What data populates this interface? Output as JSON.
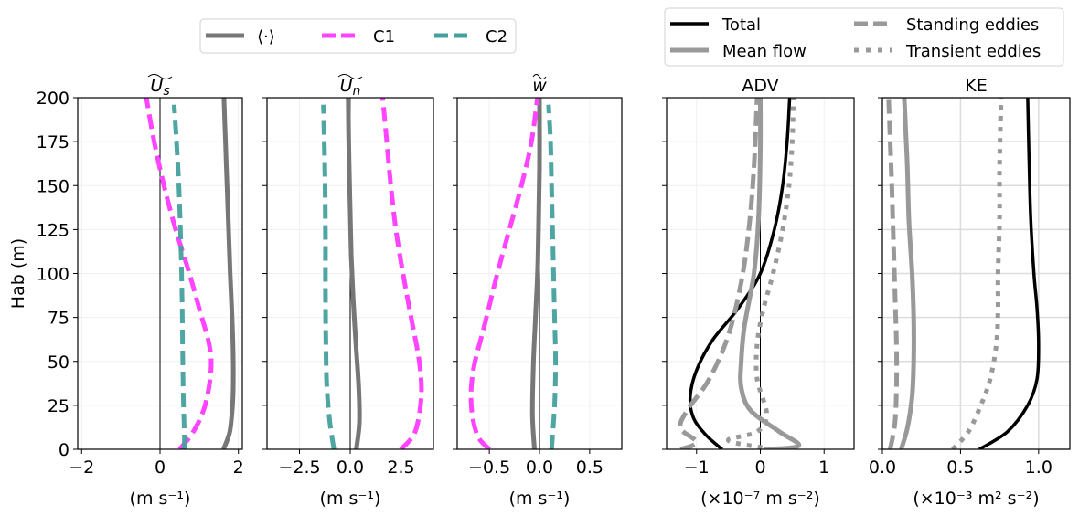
{
  "chart_data": [
    {
      "type": "line",
      "title": "U_s (tilde)",
      "title_main": "U",
      "title_sub": "s",
      "xlabel": "(m s⁻¹)",
      "ylabel": "Hab (m)",
      "xlim": [
        -2.1,
        2.1
      ],
      "ylim": [
        0,
        200
      ],
      "xticks": [
        -2,
        0,
        2
      ],
      "xtick_labels": [
        "−2",
        "0",
        "2"
      ],
      "yticks": [
        0,
        25,
        50,
        75,
        100,
        125,
        150,
        175,
        200
      ],
      "ytick_labels": [
        "0",
        "25",
        "50",
        "75",
        "100",
        "125",
        "150",
        "175",
        "200"
      ],
      "grid": true,
      "zero_line": true,
      "series": [
        {
          "name": "⟨·⟩",
          "style": "solid",
          "color": "#777777",
          "x": [
            1.62,
            1.78,
            1.85,
            1.87,
            1.86,
            1.83,
            1.79,
            1.75,
            1.71,
            1.67,
            1.63
          ],
          "y": [
            0,
            10,
            25,
            40,
            60,
            80,
            100,
            125,
            150,
            175,
            200
          ]
        },
        {
          "name": "C1",
          "style": "dashed",
          "color": "#ff44ff",
          "x": [
            0.5,
            0.85,
            1.15,
            1.3,
            1.25,
            1.0,
            0.75,
            0.4,
            0.1,
            -0.15,
            -0.35
          ],
          "y": [
            0,
            10,
            25,
            45,
            60,
            80,
            100,
            125,
            150,
            175,
            200
          ]
        },
        {
          "name": "C2",
          "style": "dashed",
          "color": "#44a09c",
          "x": [
            0.62,
            0.62,
            0.6,
            0.58,
            0.57,
            0.55,
            0.52,
            0.48,
            0.42,
            0.36
          ],
          "y": [
            0,
            10,
            25,
            50,
            75,
            100,
            125,
            150,
            175,
            196
          ]
        }
      ]
    },
    {
      "type": "line",
      "title": "U_n (tilde)",
      "title_main": "U",
      "title_sub": "n",
      "xlabel": "(m s⁻¹)",
      "xlim": [
        -4.1,
        4.1
      ],
      "ylim": [
        0,
        200
      ],
      "xticks": [
        -2.5,
        0.0,
        2.5
      ],
      "xtick_labels": [
        "−2.5",
        "0.0",
        "2.5"
      ],
      "grid": true,
      "zero_line": true,
      "series": [
        {
          "name": "⟨·⟩",
          "style": "solid",
          "color": "#777777",
          "x": [
            0.3,
            0.45,
            0.42,
            0.28,
            0.15,
            0.05,
            0.0,
            -0.05,
            -0.08,
            -0.1
          ],
          "y": [
            0,
            15,
            35,
            60,
            85,
            110,
            135,
            160,
            180,
            200
          ]
        },
        {
          "name": "C1",
          "style": "dashed",
          "color": "#ff44ff",
          "x": [
            2.5,
            3.2,
            3.5,
            3.4,
            3.0,
            2.6,
            2.25,
            2.0,
            1.8,
            1.6
          ],
          "y": [
            0,
            10,
            30,
            50,
            75,
            100,
            125,
            150,
            175,
            200
          ]
        },
        {
          "name": "C2",
          "style": "dashed",
          "color": "#44a09c",
          "x": [
            -0.8,
            -1.0,
            -1.15,
            -1.2,
            -1.22,
            -1.22,
            -1.24,
            -1.28,
            -1.32
          ],
          "y": [
            0,
            15,
            35,
            60,
            90,
            120,
            150,
            175,
            196
          ]
        }
      ]
    },
    {
      "type": "line",
      "title": "w (tilde)",
      "title_main": "w",
      "title_sub": "",
      "xlabel": "(m s⁻¹)",
      "xlim": [
        -0.82,
        0.82
      ],
      "ylim": [
        0,
        200
      ],
      "xticks": [
        -0.5,
        0.0,
        0.5
      ],
      "xtick_labels": [
        "−0.5",
        "0.0",
        "0.5"
      ],
      "grid": true,
      "zero_line": true,
      "series": [
        {
          "name": "⟨·⟩",
          "style": "solid",
          "color": "#777777",
          "x": [
            -0.05,
            -0.07,
            -0.06,
            -0.04,
            -0.02,
            -0.01,
            0.0,
            0.0
          ],
          "y": [
            0,
            20,
            50,
            75,
            100,
            125,
            160,
            200
          ]
        },
        {
          "name": "C1",
          "style": "dashed",
          "color": "#ff44ff",
          "x": [
            -0.5,
            -0.62,
            -0.68,
            -0.66,
            -0.55,
            -0.42,
            -0.3,
            -0.18,
            -0.08,
            -0.02
          ],
          "y": [
            0,
            8,
            25,
            45,
            70,
            100,
            125,
            150,
            175,
            200
          ]
        },
        {
          "name": "C2",
          "style": "dashed",
          "color": "#44a09c",
          "x": [
            0.12,
            0.15,
            0.16,
            0.15,
            0.14,
            0.13,
            0.12,
            0.11,
            0.09
          ],
          "y": [
            0,
            25,
            50,
            75,
            100,
            125,
            150,
            175,
            196
          ]
        }
      ]
    },
    {
      "type": "line",
      "title": "ADV",
      "xlabel": "(×10⁻⁷ m s⁻²)",
      "xlim": [
        -1.47,
        1.47
      ],
      "ylim": [
        0,
        200
      ],
      "xticks": [
        -1,
        0,
        1
      ],
      "xtick_labels": [
        "−1",
        "0",
        "1"
      ],
      "grid": true,
      "zero_line": true,
      "series": [
        {
          "name": "Total",
          "style": "solid",
          "color": "#000000",
          "x": [
            -0.6,
            -0.85,
            -1.05,
            -1.1,
            -1.0,
            -0.75,
            -0.35,
            0.0,
            0.22,
            0.35,
            0.42,
            0.46
          ],
          "y": [
            0,
            8,
            18,
            30,
            45,
            62,
            80,
            100,
            125,
            150,
            175,
            200
          ]
        },
        {
          "name": "Mean flow",
          "style": "solid",
          "color": "#999999",
          "x": [
            0.05,
            0.6,
            0.3,
            -0.15,
            -0.3,
            -0.3,
            -0.25,
            -0.1,
            -0.03,
            0.0,
            0.0
          ],
          "y": [
            0,
            2,
            10,
            22,
            35,
            50,
            70,
            100,
            130,
            170,
            200
          ]
        },
        {
          "name": "Standing eddies",
          "style": "dashed",
          "color": "#999999",
          "x": [
            -1.25,
            -1.0,
            -1.25,
            -1.15,
            -0.8,
            -0.5,
            -0.3,
            -0.18,
            -0.1,
            -0.05
          ],
          "y": [
            0,
            4,
            12,
            22,
            40,
            65,
            95,
            125,
            160,
            200
          ]
        },
        {
          "name": "Transient eddies",
          "style": "dotted",
          "color": "#999999",
          "x": [
            0.2,
            -0.5,
            -0.05,
            0.1,
            -0.05,
            -0.05,
            0.05,
            0.2,
            0.35,
            0.45,
            0.5,
            0.52
          ],
          "y": [
            0,
            5,
            10,
            20,
            40,
            60,
            80,
            100,
            125,
            150,
            175,
            200
          ]
        }
      ]
    },
    {
      "type": "line",
      "title": "KE",
      "xlabel": "(×10⁻³ m² s⁻²)",
      "xlim": [
        0,
        1.2
      ],
      "ylim": [
        0,
        200
      ],
      "xticks": [
        0.0,
        0.5,
        1.0
      ],
      "xtick_labels": [
        "0.0",
        "0.5",
        "1.0"
      ],
      "grid": true,
      "zero_line": false,
      "series": [
        {
          "name": "Total",
          "style": "solid",
          "color": "#000000",
          "x": [
            0.62,
            0.8,
            0.93,
            0.99,
            1.0,
            0.99,
            0.97,
            0.95,
            0.94,
            0.93
          ],
          "y": [
            0,
            10,
            25,
            40,
            60,
            80,
            100,
            130,
            160,
            200
          ]
        },
        {
          "name": "Mean flow",
          "style": "solid",
          "color": "#999999",
          "x": [
            0.12,
            0.16,
            0.19,
            0.2,
            0.2,
            0.19,
            0.17,
            0.16,
            0.15,
            0.14
          ],
          "y": [
            0,
            12,
            30,
            50,
            75,
            100,
            130,
            160,
            180,
            200
          ]
        },
        {
          "name": "Standing eddies",
          "style": "dashed",
          "color": "#999999",
          "x": [
            0.05,
            0.08,
            0.09,
            0.09,
            0.08,
            0.07,
            0.06,
            0.05,
            0.04
          ],
          "y": [
            0,
            15,
            35,
            60,
            90,
            120,
            150,
            175,
            200
          ]
        },
        {
          "name": "Transient eddies",
          "style": "dotted",
          "color": "#999999",
          "x": [
            0.45,
            0.55,
            0.63,
            0.69,
            0.73,
            0.74,
            0.74,
            0.75,
            0.75,
            0.76
          ],
          "y": [
            0,
            10,
            25,
            40,
            60,
            80,
            100,
            130,
            160,
            200
          ]
        }
      ]
    }
  ],
  "legends": {
    "left": [
      {
        "label": "⟨·⟩",
        "style": "solid",
        "color": "#777777"
      },
      {
        "label": "C1",
        "style": "dashed",
        "color": "#ff44ff"
      },
      {
        "label": "C2",
        "style": "dashed",
        "color": "#44a09c"
      }
    ],
    "right": [
      {
        "label": "Total",
        "style": "solid",
        "color": "#000000"
      },
      {
        "label": "Mean flow",
        "style": "solid",
        "color": "#999999"
      },
      {
        "label": "Standing eddies",
        "style": "dashed",
        "color": "#999999"
      },
      {
        "label": "Transient eddies",
        "style": "dotted",
        "color": "#999999"
      }
    ]
  }
}
